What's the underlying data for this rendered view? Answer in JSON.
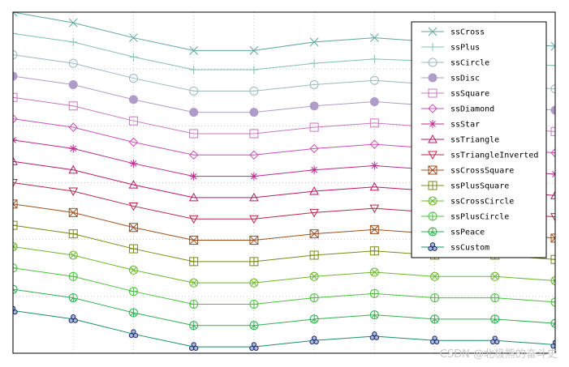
{
  "chart_data": {
    "type": "line",
    "title": "",
    "xlabel": "",
    "ylabel": "",
    "x": [
      0,
      1,
      2,
      3,
      4,
      5,
      6,
      7,
      8,
      9
    ],
    "xlim": [
      0,
      9
    ],
    "ylim": [
      0,
      16
    ],
    "grid": true,
    "legend": "top-right",
    "series": [
      {
        "name": "ssCross",
        "shape": "cross",
        "color": "#5fa6a0",
        "values": [
          16.0,
          15.5,
          14.8,
          14.2,
          14.2,
          14.6,
          14.8,
          14.6,
          14.6,
          14.4
        ]
      },
      {
        "name": "ssPlus",
        "shape": "plus",
        "color": "#82c0b4",
        "values": [
          15.0,
          14.6,
          13.9,
          13.3,
          13.3,
          13.6,
          13.8,
          13.7,
          13.6,
          13.5
        ]
      },
      {
        "name": "ssCircle",
        "shape": "circle",
        "color": "#9cb8c0",
        "values": [
          14.0,
          13.6,
          12.9,
          12.3,
          12.3,
          12.6,
          12.8,
          12.6,
          12.6,
          12.4
        ]
      },
      {
        "name": "ssDisc",
        "shape": "disc",
        "color": "#b09cc8",
        "values": [
          13.0,
          12.6,
          11.9,
          11.3,
          11.3,
          11.6,
          11.8,
          11.6,
          11.6,
          11.4
        ]
      },
      {
        "name": "ssSquare",
        "shape": "square",
        "color": "#c878c0",
        "values": [
          12.0,
          11.6,
          10.9,
          10.3,
          10.3,
          10.6,
          10.8,
          10.6,
          10.6,
          10.4
        ]
      },
      {
        "name": "ssDiamond",
        "shape": "diamond",
        "color": "#c850b8",
        "values": [
          11.0,
          10.6,
          9.9,
          9.3,
          9.3,
          9.6,
          9.8,
          9.6,
          9.6,
          9.4
        ]
      },
      {
        "name": "ssStar",
        "shape": "star",
        "color": "#c02890",
        "values": [
          10.0,
          9.6,
          8.9,
          8.3,
          8.3,
          8.6,
          8.8,
          8.6,
          8.6,
          8.4
        ]
      },
      {
        "name": "ssTriangle",
        "shape": "triangle",
        "color": "#b81868",
        "values": [
          9.0,
          8.6,
          7.9,
          7.3,
          7.3,
          7.6,
          7.8,
          7.6,
          7.6,
          7.4
        ]
      },
      {
        "name": "ssTriangleInverted",
        "shape": "triangle-inverted",
        "color": "#b82848",
        "values": [
          8.0,
          7.6,
          6.9,
          6.3,
          6.3,
          6.6,
          6.8,
          6.6,
          6.6,
          6.4
        ]
      },
      {
        "name": "ssCrossSquare",
        "shape": "cross-square",
        "color": "#9c5020",
        "values": [
          7.0,
          6.6,
          5.9,
          5.3,
          5.3,
          5.6,
          5.8,
          5.6,
          5.6,
          5.4
        ]
      },
      {
        "name": "ssPlusSquare",
        "shape": "plus-square",
        "color": "#7c8818",
        "values": [
          6.0,
          5.6,
          4.9,
          4.3,
          4.3,
          4.6,
          4.8,
          4.6,
          4.6,
          4.4
        ]
      },
      {
        "name": "ssCrossCircle",
        "shape": "cross-circle",
        "color": "#6cb830",
        "values": [
          5.0,
          4.6,
          3.9,
          3.3,
          3.3,
          3.6,
          3.8,
          3.6,
          3.6,
          3.4
        ]
      },
      {
        "name": "ssPlusCircle",
        "shape": "plus-circle",
        "color": "#4cc040",
        "values": [
          4.0,
          3.6,
          2.9,
          2.3,
          2.3,
          2.6,
          2.8,
          2.6,
          2.6,
          2.4
        ]
      },
      {
        "name": "ssPeace",
        "shape": "peace",
        "color": "#30b050",
        "values": [
          3.0,
          2.6,
          1.9,
          1.3,
          1.3,
          1.6,
          1.8,
          1.6,
          1.6,
          1.4
        ]
      },
      {
        "name": "ssCustom",
        "shape": "custom",
        "color": "#1a8c6c",
        "values": [
          2.0,
          1.6,
          0.9,
          0.3,
          0.3,
          0.6,
          0.8,
          0.6,
          0.6,
          0.4
        ]
      }
    ]
  },
  "watermark": "CSDN @北极熊的奋斗史"
}
